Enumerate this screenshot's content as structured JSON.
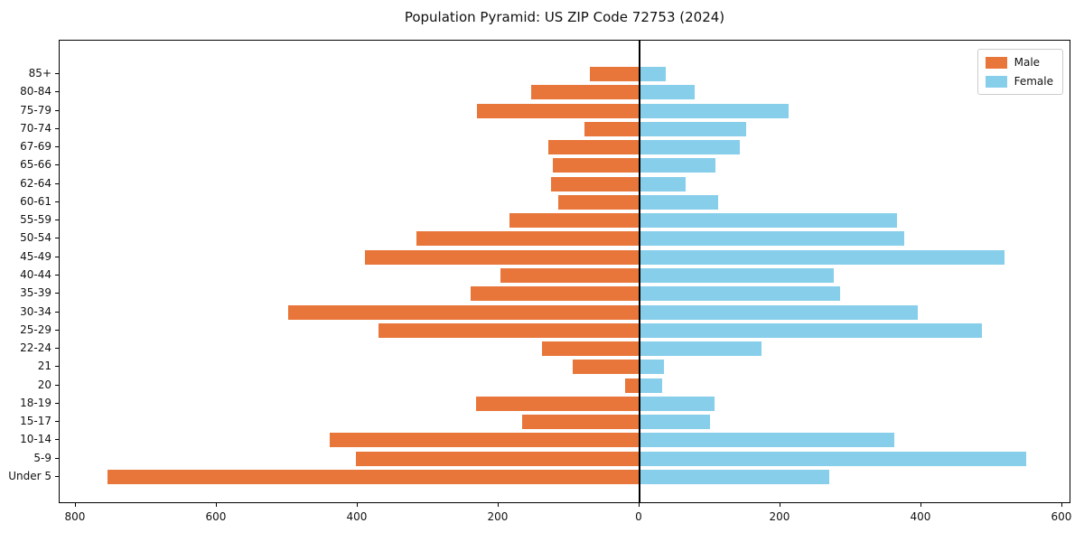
{
  "title": "Population Pyramid: US ZIP Code 72753 (2024)",
  "legend": {
    "entries": [
      {
        "label": "Male",
        "color": "#e8763a"
      },
      {
        "label": "Female",
        "color": "#87ceeb"
      }
    ]
  },
  "chart_data": {
    "type": "bar",
    "subtype": "population-pyramid",
    "title": "Population Pyramid: US ZIP Code 72753 (2024)",
    "categories": [
      "85+",
      "80-84",
      "75-79",
      "70-74",
      "67-69",
      "65-66",
      "62-64",
      "60-61",
      "55-59",
      "50-54",
      "45-49",
      "40-44",
      "35-39",
      "30-34",
      "25-29",
      "22-24",
      "21",
      "20",
      "18-19",
      "15-17",
      "10-14",
      "5-9",
      "Under 5"
    ],
    "series": [
      {
        "name": "Male",
        "side": "left",
        "color": "#e8763a",
        "values": [
          70,
          154,
          231,
          78,
          130,
          123,
          126,
          115,
          184,
          317,
          390,
          198,
          240,
          499,
          370,
          139,
          95,
          20,
          232,
          166,
          440,
          403,
          755
        ]
      },
      {
        "name": "Female",
        "side": "right",
        "color": "#87ceeb",
        "values": [
          38,
          78,
          212,
          151,
          143,
          108,
          65,
          112,
          365,
          376,
          518,
          276,
          285,
          395,
          486,
          173,
          35,
          32,
          106,
          100,
          362,
          549,
          269
        ]
      }
    ],
    "xlabel": "",
    "ylabel": "",
    "xlim": [
      -823,
      613
    ],
    "x_axis": {
      "tick_values": [
        -800,
        -600,
        -400,
        -200,
        0,
        200,
        400,
        600
      ],
      "tick_labels": [
        "800",
        "600",
        "400",
        "200",
        "0",
        "200",
        "400",
        "600"
      ]
    },
    "grid": false,
    "legend_position": "upper right",
    "center_line": true
  }
}
